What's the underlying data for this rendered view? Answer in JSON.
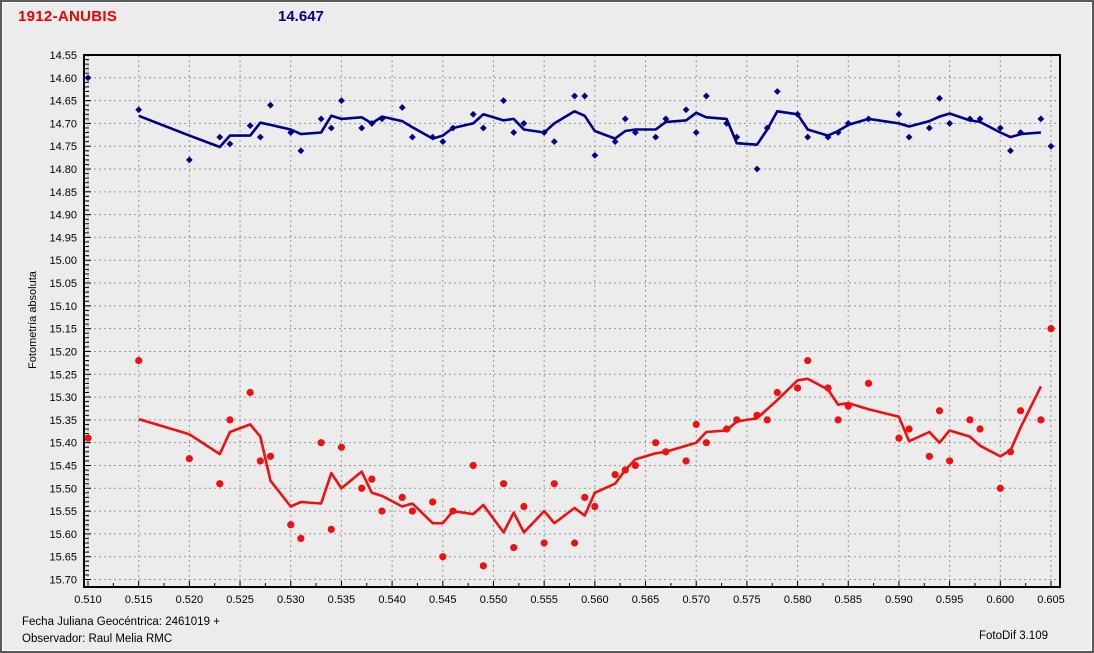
{
  "header": {
    "object_name": "1912-ANUBIS",
    "magnitude_value": "14.647"
  },
  "footer": {
    "line1": "Fecha Juliana Geocéntrica: 2461019 +",
    "line2": "Observador: Raul Melia RMC",
    "app_version": "FotoDif 3.109"
  },
  "colors": {
    "window_bg": "#ececec",
    "grid": "#979797",
    "axis_border": "#000000",
    "title_red": "#ee0000",
    "navy": "#00008b",
    "series_red": "#ee1111"
  },
  "chart_data": {
    "type": "scatter",
    "title": "",
    "xlabel": "",
    "ylabel": "Fotometría absoluta",
    "grid": true,
    "legend": false,
    "x_axis": {
      "tick_start": 0.51,
      "tick_end": 0.605,
      "tick_step": 0.005,
      "decimals": 3
    },
    "y_axis": {
      "tick_start": 14.55,
      "tick_end": 15.7,
      "tick_step": 0.05,
      "decimals": 2,
      "direction": "increases-downward"
    },
    "x": [
      0.51,
      0.515,
      0.52,
      0.523,
      0.524,
      0.526,
      0.527,
      0.528,
      0.53,
      0.531,
      0.533,
      0.534,
      0.535,
      0.537,
      0.538,
      0.539,
      0.541,
      0.542,
      0.544,
      0.545,
      0.546,
      0.548,
      0.549,
      0.551,
      0.552,
      0.553,
      0.555,
      0.556,
      0.558,
      0.559,
      0.56,
      0.562,
      0.563,
      0.564,
      0.566,
      0.567,
      0.569,
      0.57,
      0.571,
      0.573,
      0.574,
      0.576,
      0.577,
      0.578,
      0.58,
      0.581,
      0.583,
      0.584,
      0.585,
      0.587,
      0.59,
      0.591,
      0.593,
      0.594,
      0.595,
      0.597,
      0.598,
      0.6,
      0.601,
      0.602,
      0.604,
      0.605
    ],
    "series": [
      {
        "name": "blue-comparison-curve",
        "color": "#00008b",
        "marker": "diamond",
        "line": "moving-average-3",
        "values": [
          14.6,
          14.67,
          14.78,
          14.73,
          14.745,
          14.705,
          14.73,
          14.66,
          14.72,
          14.76,
          14.69,
          14.71,
          14.65,
          14.71,
          14.7,
          14.69,
          14.665,
          14.73,
          14.73,
          14.74,
          14.71,
          14.68,
          14.71,
          14.65,
          14.72,
          14.7,
          14.72,
          14.74,
          14.64,
          14.64,
          14.77,
          14.74,
          14.69,
          14.72,
          14.73,
          14.69,
          14.67,
          14.72,
          14.64,
          14.7,
          14.73,
          14.8,
          14.71,
          14.63,
          14.68,
          14.73,
          14.73,
          14.72,
          14.7,
          14.69,
          14.68,
          14.73,
          14.71,
          14.645,
          14.7,
          14.69,
          14.69,
          14.71,
          14.76,
          14.72,
          14.69,
          14.75
        ]
      },
      {
        "name": "red-target-curve",
        "color": "#ee1111",
        "marker": "circle",
        "line": "moving-average-3",
        "values": [
          15.39,
          15.22,
          15.435,
          15.49,
          15.35,
          15.29,
          15.44,
          15.43,
          15.58,
          15.61,
          15.4,
          15.59,
          15.41,
          15.5,
          15.48,
          15.55,
          15.52,
          15.55,
          15.53,
          15.65,
          15.55,
          15.45,
          15.67,
          15.49,
          15.63,
          15.54,
          15.62,
          15.49,
          15.62,
          15.52,
          15.54,
          15.47,
          15.46,
          15.45,
          15.4,
          15.42,
          15.44,
          15.36,
          15.4,
          15.37,
          15.35,
          15.34,
          15.35,
          15.29,
          15.28,
          15.22,
          15.28,
          15.35,
          15.32,
          15.27,
          15.39,
          15.37,
          15.43,
          15.33,
          15.44,
          15.35,
          15.37,
          15.5,
          15.42,
          15.33,
          15.35,
          15.15
        ]
      }
    ]
  }
}
